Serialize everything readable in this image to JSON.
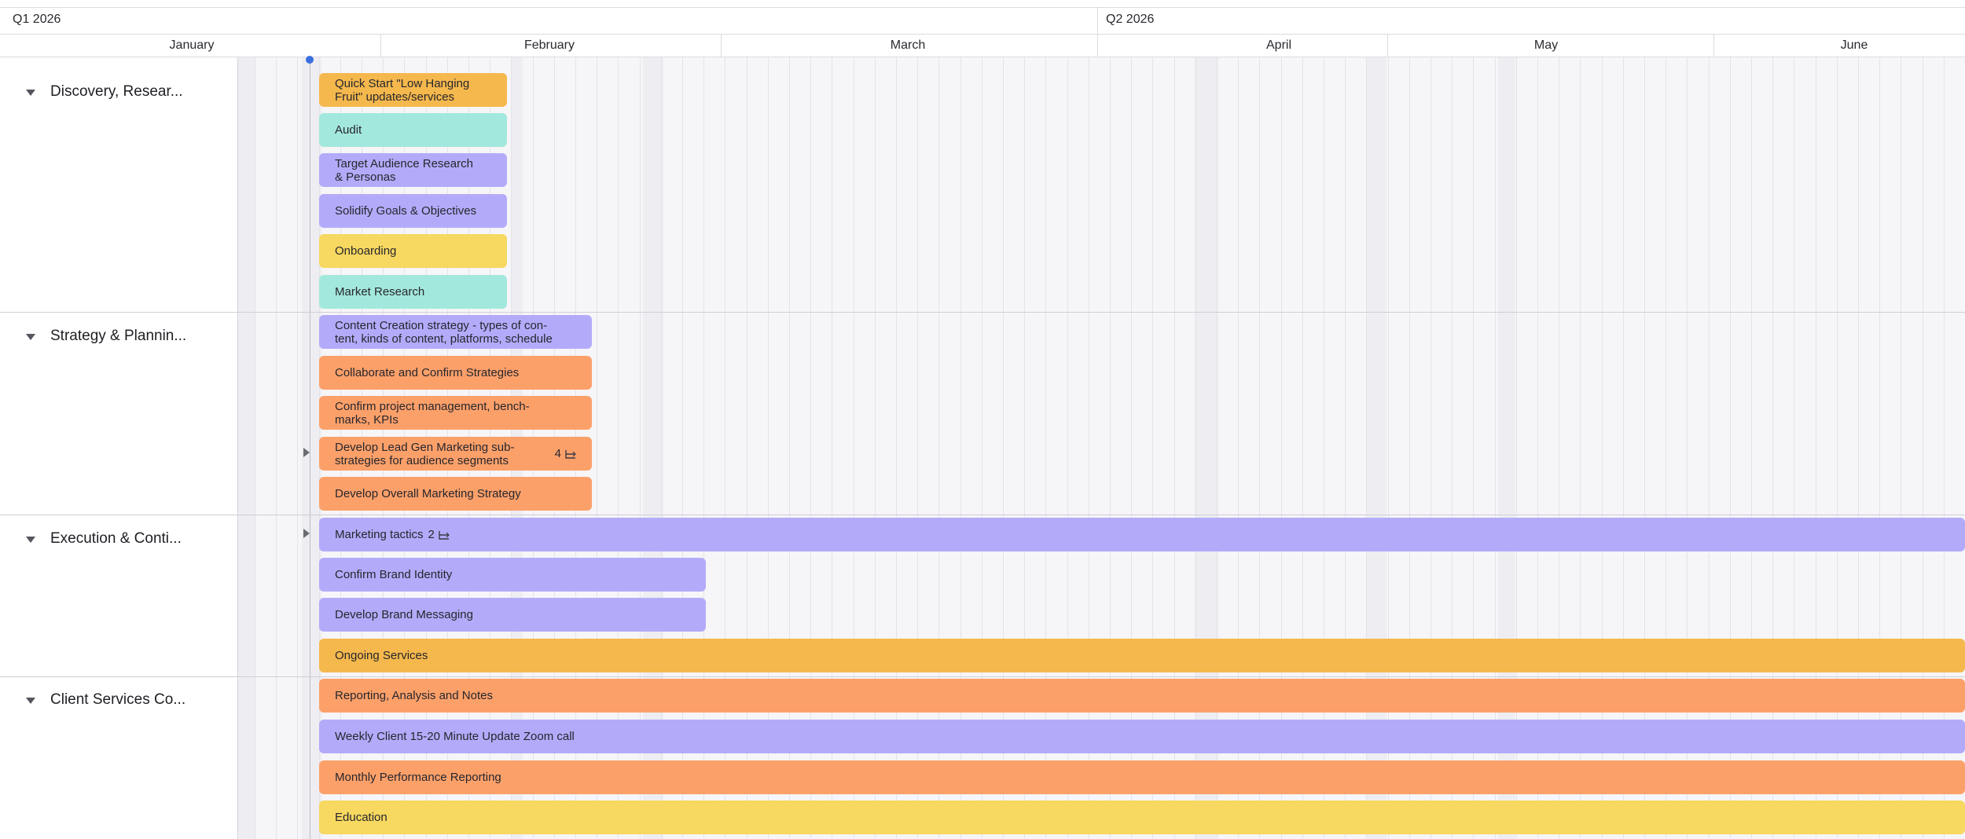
{
  "header": {
    "quarters": [
      "Q1 2026",
      "Q2 2026"
    ],
    "months": [
      "January",
      "February",
      "March",
      "April",
      "May",
      "June"
    ]
  },
  "groups": [
    {
      "label": "Discovery, Resear..."
    },
    {
      "label": "Strategy & Plannin..."
    },
    {
      "label": "Execution & Conti..."
    },
    {
      "label": "Client Services Co..."
    }
  ],
  "tasks": [
    {
      "label": "Quick Start \"Low Hanging\nFruit\" updates/services",
      "color": "#f5b84d"
    },
    {
      "label": "Audit",
      "color": "#a3e8dc"
    },
    {
      "label": "Target Audience Research\n& Personas",
      "color": "#b3abfa"
    },
    {
      "label": "Solidify Goals & Objectives",
      "color": "#b3abfa"
    },
    {
      "label": "Onboarding",
      "color": "#f7d860"
    },
    {
      "label": "Market Research",
      "color": "#a3e8dc"
    },
    {
      "label": "Content Creation strategy - types of con-\ntent, kinds of content, platforms, schedule",
      "color": "#b3abfa"
    },
    {
      "label": "Collaborate and Confirm Strategies",
      "color": "#fca06a"
    },
    {
      "label": "Confirm project management, bench-\nmarks, KPIs",
      "color": "#fca06a"
    },
    {
      "label": "Develop Lead Gen Marketing sub-\nstrategies for audience segments",
      "color": "#fca06a",
      "subtasks": "4"
    },
    {
      "label": "Develop Overall Marketing Strategy",
      "color": "#fca06a"
    },
    {
      "label": "Marketing tactics",
      "color": "#b3abfa",
      "subtasks": "2"
    },
    {
      "label": "Confirm Brand Identity",
      "color": "#b3abfa"
    },
    {
      "label": "Develop Brand Messaging",
      "color": "#b3abfa"
    },
    {
      "label": "Ongoing Services",
      "color": "#f5b84d"
    },
    {
      "label": "Reporting, Analysis and Notes",
      "color": "#fca06a"
    },
    {
      "label": "Weekly Client 15-20 Minute Update Zoom call",
      "color": "#b3abfa"
    },
    {
      "label": "Monthly Performance Reporting",
      "color": "#fca06a"
    },
    {
      "label": "Education",
      "color": "#f7d860"
    }
  ]
}
